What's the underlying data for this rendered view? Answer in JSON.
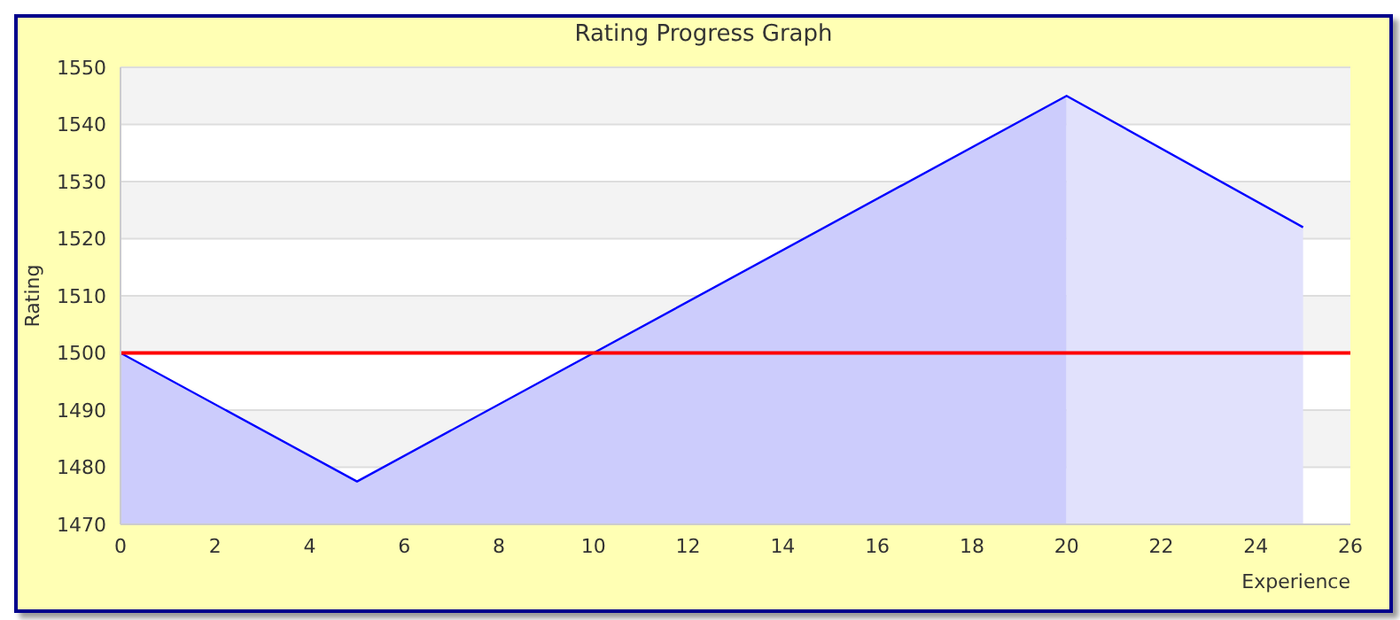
{
  "chart_data": {
    "type": "area",
    "title": "Rating Progress Graph",
    "xlabel": "Experience",
    "ylabel": "Rating",
    "series": [
      {
        "color": "#ccccfc",
        "x": [
          0,
          5,
          20
        ],
        "values": [
          1500,
          1477.5,
          1545
        ]
      },
      {
        "color": "#e1e1fc",
        "x": [
          20,
          25
        ],
        "values": [
          1545,
          1522
        ]
      },
      {
        "type": "line",
        "color": "#0000ff",
        "x": [
          0,
          5,
          20,
          25
        ],
        "values": [
          1500,
          1477.5,
          1545,
          1522
        ]
      }
    ],
    "xlim": [
      0,
      26
    ],
    "xticks": [
      0,
      2,
      4,
      6,
      8,
      10,
      12,
      14,
      16,
      18,
      20,
      22,
      24,
      26
    ],
    "ylim": [
      1470,
      1550
    ],
    "yticks": [
      1470,
      1480,
      1490,
      1500,
      1510,
      1520,
      1530,
      1540,
      1550
    ],
    "ref_lines": [
      {
        "axis": "y",
        "value": 1500,
        "color": "#ff0000"
      }
    ],
    "grid": "y",
    "legend": false,
    "marker": "none",
    "line_style": "solid"
  }
}
